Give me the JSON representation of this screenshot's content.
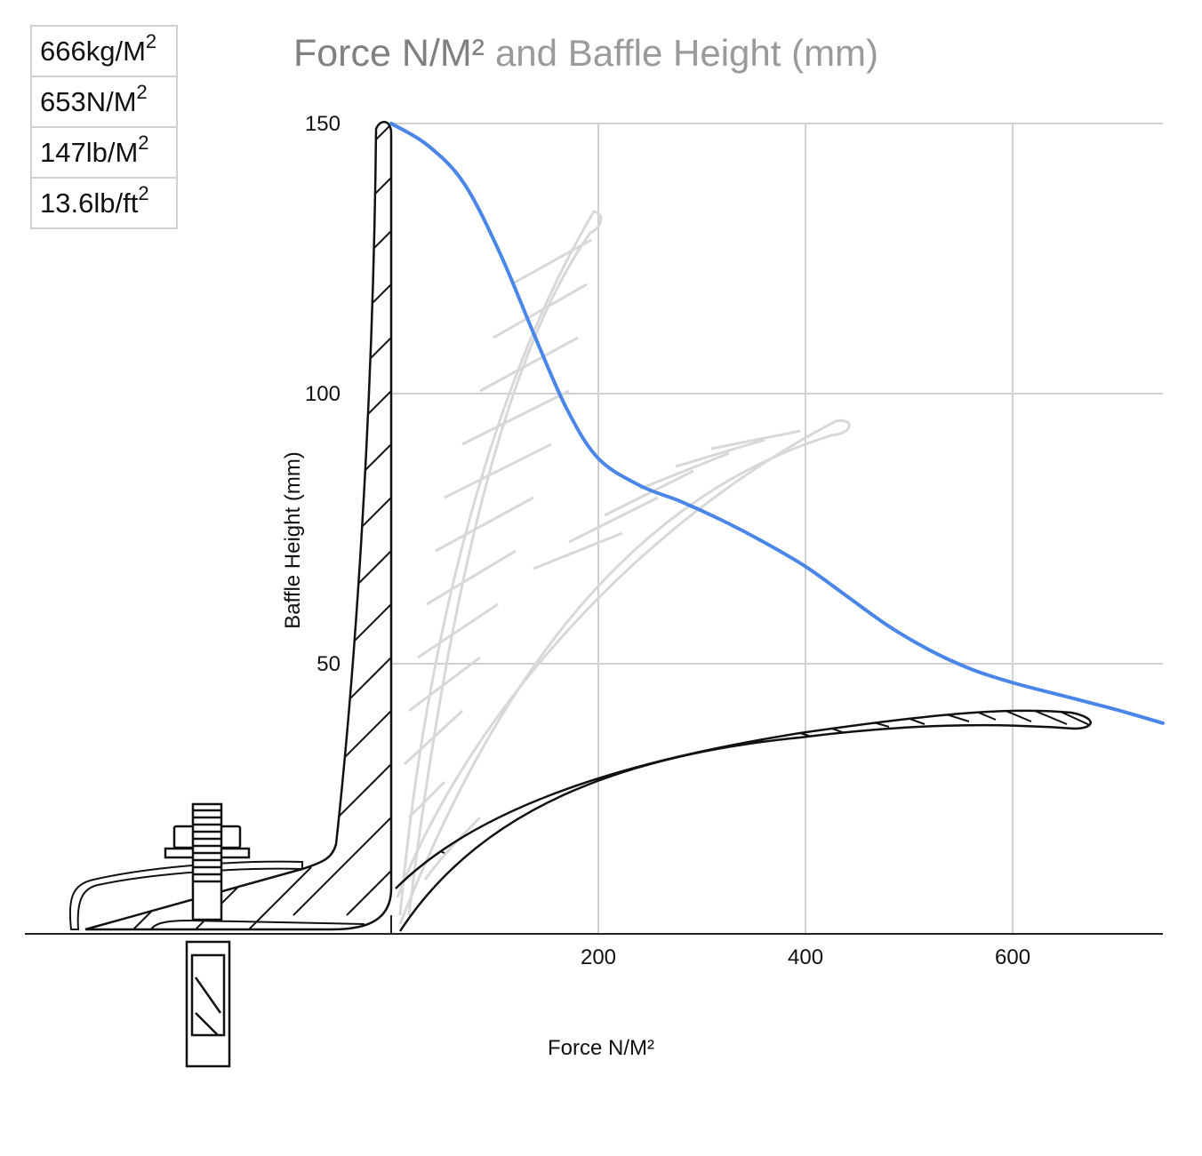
{
  "units_table": [
    {
      "value": "666kg/M",
      "exp": "2"
    },
    {
      "value": "653N/M",
      "exp": "2"
    },
    {
      "value": "147lb/M",
      "exp": "2"
    },
    {
      "value": "13.6lb/ft",
      "exp": "2"
    }
  ],
  "colors": {
    "series_line": "#4a86e8",
    "grid": "#d0d0d0",
    "title": "#8a8a8a",
    "baffle_outline": "#111111",
    "baffle_ghost": "#d6d6d6"
  },
  "chart_data": {
    "type": "line",
    "title_part1": "Force N/M²",
    "title_part2": "and Baffle Height (mm)",
    "xlabel": "Force N/M²",
    "ylabel": "Baffle Height (mm)",
    "xlim": [
      0,
      745
    ],
    "ylim": [
      0,
      150
    ],
    "x_ticks": [
      200,
      400,
      600
    ],
    "y_ticks": [
      50,
      100,
      150
    ],
    "grid": true,
    "series": [
      {
        "x": [
          0,
          35,
          70,
          105,
          140,
          170,
          200,
          240,
          280,
          320,
          360,
          400,
          440,
          480,
          520,
          560,
          600,
          650,
          700,
          745
        ],
        "y": [
          150,
          146,
          139,
          126,
          110,
          97,
          88,
          83,
          80,
          76.5,
          72.5,
          68,
          62.5,
          57,
          52.5,
          49,
          46.5,
          44,
          41.5,
          39
        ]
      }
    ]
  }
}
